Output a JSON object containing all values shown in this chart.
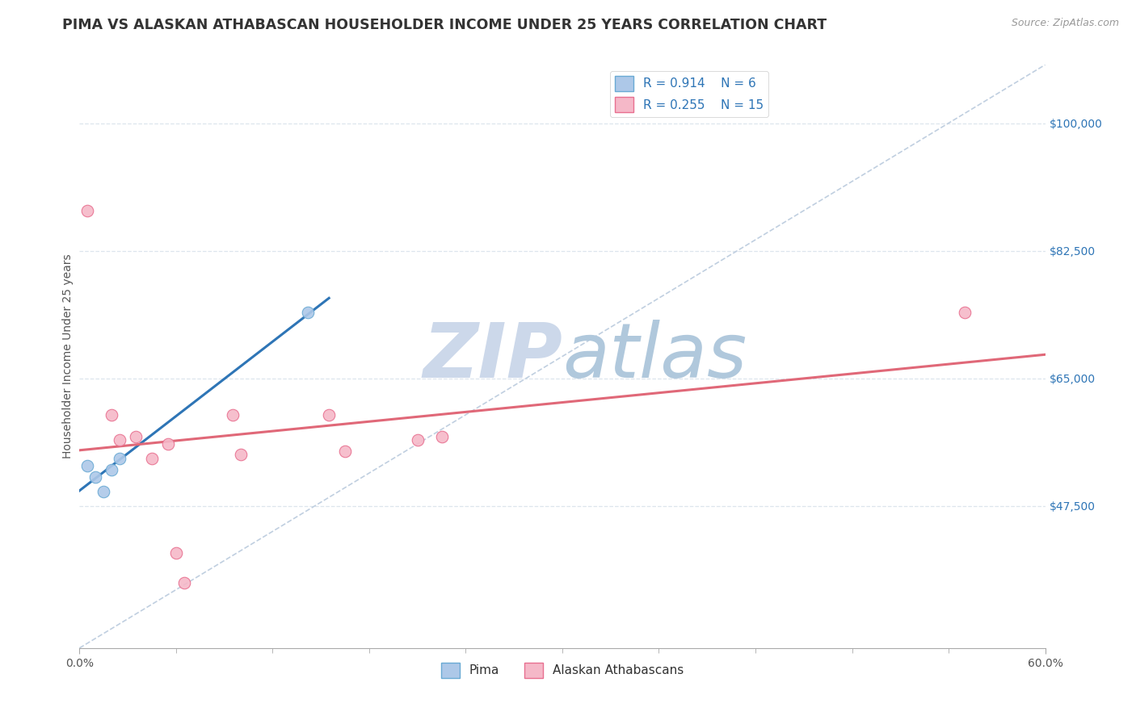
{
  "title": "PIMA VS ALASKAN ATHABASCAN HOUSEHOLDER INCOME UNDER 25 YEARS CORRELATION CHART",
  "source": "Source: ZipAtlas.com",
  "ylabel": "Householder Income Under 25 years",
  "xlim": [
    0.0,
    0.6
  ],
  "ylim": [
    28000,
    108000
  ],
  "right_ytick_labels": [
    "$47,500",
    "$65,000",
    "$82,500",
    "$100,000"
  ],
  "right_ytick_vals": [
    47500,
    65000,
    82500,
    100000
  ],
  "pima_color": "#adc8e8",
  "pima_edge_color": "#6aaad4",
  "pima_line_color": "#2e75b6",
  "athabascan_color": "#f5b8c8",
  "athabascan_edge_color": "#e87090",
  "athabascan_line_color": "#e06878",
  "diagonal_color": "#c0cfe0",
  "grid_color": "#dde5ed",
  "background_color": "#ffffff",
  "watermark_zip": "ZIP",
  "watermark_atlas": "atlas",
  "watermark_color_zip": "#ccd8e8",
  "watermark_color_atlas": "#b8cfe0",
  "legend_R_pima": "0.914",
  "legend_N_pima": "6",
  "legend_R_athabascan": "0.255",
  "legend_N_athabascan": "15",
  "pima_x": [
    0.005,
    0.01,
    0.015,
    0.02,
    0.025,
    0.142
  ],
  "pima_y": [
    53000,
    51500,
    49500,
    52500,
    54000,
    74000
  ],
  "athabascan_x": [
    0.005,
    0.02,
    0.035,
    0.045,
    0.055,
    0.025,
    0.06,
    0.095,
    0.1,
    0.155,
    0.165,
    0.21,
    0.225,
    0.065,
    0.55
  ],
  "athabascan_y": [
    88000,
    60000,
    57000,
    54000,
    56000,
    56500,
    41000,
    60000,
    54500,
    60000,
    55000,
    56500,
    57000,
    37000,
    74000
  ],
  "marker_size": 110,
  "title_fontsize": 12.5,
  "axis_label_fontsize": 10,
  "tick_fontsize": 10,
  "legend_fontsize": 11
}
